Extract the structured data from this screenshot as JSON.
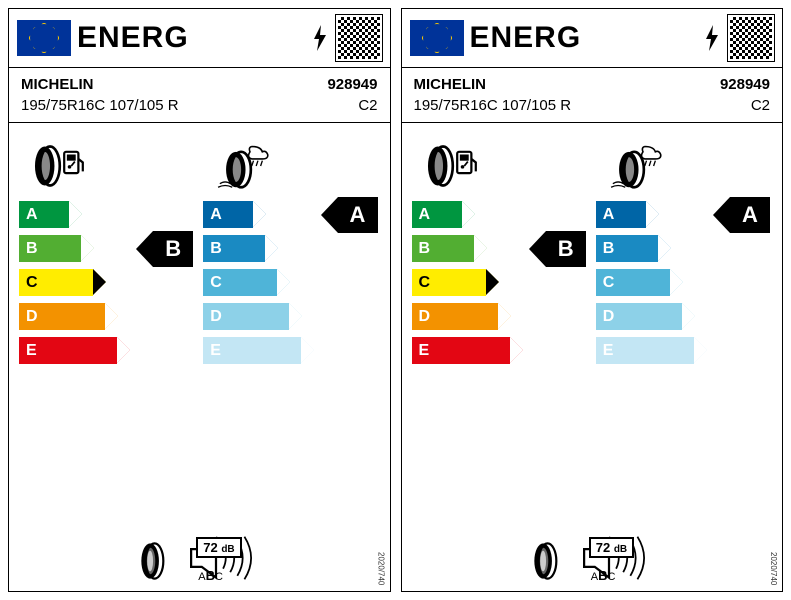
{
  "labels": [
    {
      "header": {
        "energ": "ENERG",
        "bolt": true
      },
      "brand": "MICHELIN",
      "code": "928949",
      "size": "195/75R16C 107/105 R",
      "class": "C2",
      "fuel": {
        "grades": [
          "A",
          "B",
          "C",
          "D",
          "E"
        ],
        "colors": [
          "#009640",
          "#52ae32",
          "#ffed00",
          "#f39200",
          "#e30613"
        ],
        "widths": [
          50,
          62,
          74,
          86,
          98
        ],
        "selected": "B",
        "selected_index": 1
      },
      "wet": {
        "grades": [
          "A",
          "B",
          "C",
          "D",
          "E"
        ],
        "colors": [
          "#0065a6",
          "#1a8ac2",
          "#4fb4d8",
          "#8dd1e8",
          "#c3e6f4"
        ],
        "widths": [
          50,
          62,
          74,
          86,
          98
        ],
        "selected": "A",
        "selected_index": 0
      },
      "noise": {
        "db": "72",
        "unit": "dB",
        "classes": [
          "A",
          "B",
          "C"
        ],
        "selected": "B"
      },
      "regulation": "2020/740"
    },
    {
      "header": {
        "energ": "ENERG",
        "bolt": true
      },
      "brand": "MICHELIN",
      "code": "928949",
      "size": "195/75R16C 107/105 R",
      "class": "C2",
      "fuel": {
        "grades": [
          "A",
          "B",
          "C",
          "D",
          "E"
        ],
        "colors": [
          "#009640",
          "#52ae32",
          "#ffed00",
          "#f39200",
          "#e30613"
        ],
        "widths": [
          50,
          62,
          74,
          86,
          98
        ],
        "selected": "B",
        "selected_index": 1
      },
      "wet": {
        "grades": [
          "A",
          "B",
          "C",
          "D",
          "E"
        ],
        "colors": [
          "#0065a6",
          "#1a8ac2",
          "#4fb4d8",
          "#8dd1e8",
          "#c3e6f4"
        ],
        "widths": [
          50,
          62,
          74,
          86,
          98
        ],
        "selected": "A",
        "selected_index": 0
      },
      "noise": {
        "db": "72",
        "unit": "dB",
        "classes": [
          "A",
          "B",
          "C"
        ],
        "selected": "B"
      },
      "regulation": "2020/740"
    }
  ]
}
